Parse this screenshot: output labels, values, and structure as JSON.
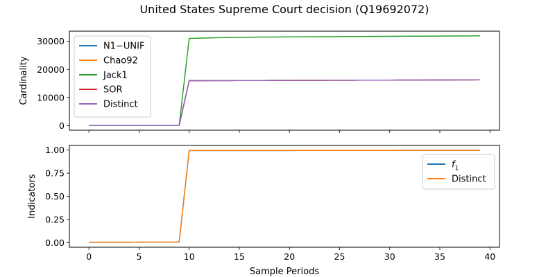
{
  "figure": {
    "title": "United States Supreme Court decision (Q19692072)"
  },
  "chart_data": [
    {
      "type": "line",
      "ylabel": "Cardinality",
      "xlabel": "",
      "xlim": [
        -1.95,
        40.95
      ],
      "ylim": [
        -1600,
        33600
      ],
      "x_ticks": [
        0,
        5,
        10,
        15,
        20,
        25,
        30,
        35,
        40
      ],
      "x_tick_labels_visible": false,
      "y_ticks": [
        0,
        10000,
        20000,
        30000
      ],
      "y_tick_labels": [
        "0",
        "10000",
        "20000",
        "30000"
      ],
      "legend_position": "top-left",
      "x": [
        0,
        1,
        2,
        3,
        4,
        5,
        6,
        7,
        8,
        9,
        10,
        11,
        12,
        13,
        14,
        15,
        16,
        17,
        18,
        19,
        20,
        21,
        22,
        23,
        24,
        25,
        26,
        27,
        28,
        29,
        30,
        31,
        32,
        33,
        34,
        35,
        36,
        37,
        38,
        39
      ],
      "series": [
        {
          "name": "N1−UNIF",
          "color": "#1f77b4",
          "values": [
            50,
            50,
            50,
            50,
            50,
            50,
            50,
            50,
            50,
            50,
            16000,
            16010,
            16020,
            16030,
            16040,
            16050,
            16060,
            16070,
            16080,
            16090,
            16100,
            16110,
            16120,
            16130,
            16140,
            16150,
            16160,
            16170,
            16180,
            16190,
            16200,
            16210,
            16220,
            16230,
            16240,
            16250,
            16260,
            16270,
            16280,
            16300
          ]
        },
        {
          "name": "Chao92",
          "color": "#ff7f0e",
          "values": [
            50,
            50,
            50,
            50,
            50,
            50,
            50,
            50,
            50,
            50,
            16000,
            16010,
            16020,
            16030,
            16040,
            16050,
            16060,
            16070,
            16080,
            16090,
            16100,
            16110,
            16120,
            16130,
            16140,
            16150,
            16160,
            16170,
            16180,
            16190,
            16200,
            16210,
            16220,
            16230,
            16240,
            16250,
            16260,
            16270,
            16280,
            16300
          ]
        },
        {
          "name": "Jack1",
          "color": "#2ca02c",
          "values": [
            80,
            80,
            80,
            80,
            80,
            90,
            90,
            90,
            90,
            90,
            31000,
            31100,
            31200,
            31300,
            31350,
            31400,
            31450,
            31500,
            31520,
            31540,
            31560,
            31580,
            31600,
            31620,
            31640,
            31660,
            31680,
            31700,
            31720,
            31740,
            31760,
            31780,
            31800,
            31820,
            31840,
            31860,
            31880,
            31900,
            31920,
            31950
          ]
        },
        {
          "name": "SOR",
          "color": "#d62728",
          "values": [
            50,
            50,
            50,
            50,
            50,
            50,
            50,
            50,
            50,
            50,
            16000,
            16010,
            16020,
            16030,
            16040,
            16050,
            16060,
            16070,
            16080,
            16090,
            16100,
            16110,
            16120,
            16130,
            16140,
            16150,
            16160,
            16170,
            16180,
            16190,
            16200,
            16210,
            16220,
            16230,
            16240,
            16250,
            16260,
            16270,
            16280,
            16300
          ]
        },
        {
          "name": "Distinct",
          "color": "#9467bd",
          "values": [
            50,
            50,
            50,
            50,
            50,
            50,
            50,
            50,
            50,
            50,
            16000,
            16010,
            16020,
            16030,
            16040,
            16050,
            16060,
            16070,
            16080,
            16090,
            16100,
            16110,
            16120,
            16130,
            16140,
            16150,
            16160,
            16170,
            16180,
            16190,
            16200,
            16210,
            16220,
            16230,
            16240,
            16250,
            16260,
            16270,
            16280,
            16300
          ]
        }
      ]
    },
    {
      "type": "line",
      "ylabel": "Indicators",
      "xlabel": "Sample Periods",
      "xlim": [
        -1.95,
        40.95
      ],
      "ylim": [
        -0.05,
        1.05
      ],
      "x_ticks": [
        0,
        5,
        10,
        15,
        20,
        25,
        30,
        35,
        40
      ],
      "x_tick_labels": [
        "0",
        "5",
        "10",
        "15",
        "20",
        "25",
        "30",
        "35",
        "40"
      ],
      "y_ticks": [
        0.0,
        0.25,
        0.5,
        0.75,
        1.0
      ],
      "y_tick_labels": [
        "0.00",
        "0.25",
        "0.50",
        "0.75",
        "1.00"
      ],
      "legend_position": "upper-right",
      "x": [
        0,
        1,
        2,
        3,
        4,
        5,
        6,
        7,
        8,
        9,
        10,
        11,
        12,
        13,
        14,
        15,
        16,
        17,
        18,
        19,
        20,
        21,
        22,
        23,
        24,
        25,
        26,
        27,
        28,
        29,
        30,
        31,
        32,
        33,
        34,
        35,
        36,
        37,
        38,
        39
      ],
      "series": [
        {
          "name": "f",
          "name_subscript": "1",
          "color": "#1f77b4",
          "values": [
            0.003,
            0.003,
            0.003,
            0.003,
            0.003,
            0.005,
            0.005,
            0.005,
            0.005,
            0.005,
            0.995,
            0.995,
            0.995,
            0.995,
            0.995,
            0.995,
            0.995,
            0.995,
            0.995,
            0.995,
            0.995,
            0.996,
            0.996,
            0.996,
            0.996,
            0.996,
            0.996,
            0.996,
            0.996,
            0.996,
            0.996,
            0.997,
            0.997,
            0.997,
            0.997,
            0.997,
            0.997,
            0.997,
            0.997,
            0.997
          ]
        },
        {
          "name": "Distinct",
          "color": "#ff7f0e",
          "values": [
            0.003,
            0.003,
            0.003,
            0.003,
            0.003,
            0.005,
            0.005,
            0.005,
            0.005,
            0.005,
            0.995,
            0.995,
            0.995,
            0.995,
            0.995,
            0.995,
            0.995,
            0.995,
            0.995,
            0.995,
            0.995,
            0.996,
            0.996,
            0.996,
            0.996,
            0.996,
            0.996,
            0.996,
            0.996,
            0.996,
            0.996,
            0.997,
            0.997,
            0.997,
            0.997,
            0.997,
            0.997,
            0.997,
            0.997,
            0.997
          ]
        }
      ]
    }
  ]
}
